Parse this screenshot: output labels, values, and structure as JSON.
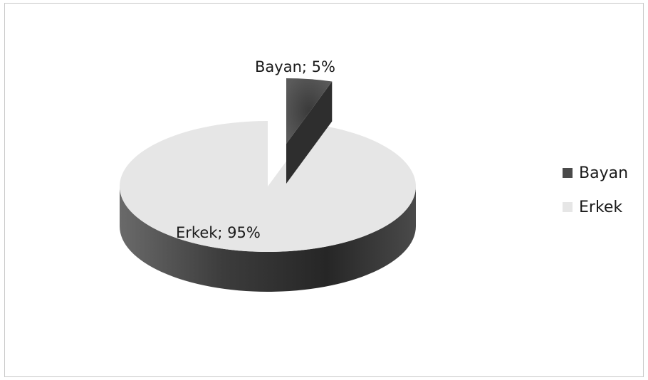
{
  "chart_data": {
    "type": "pie",
    "title": "",
    "slices": [
      {
        "name": "Bayan",
        "value": 5,
        "label": "Bayan; 5%",
        "color": "#4a4a4a"
      },
      {
        "name": "Erkek",
        "value": 95,
        "label": "Erkek; 95%",
        "color": "#e6e6e6"
      }
    ],
    "legend": {
      "position": "right",
      "entries": [
        "Bayan",
        "Erkek"
      ]
    },
    "style": "3d-exploded"
  }
}
